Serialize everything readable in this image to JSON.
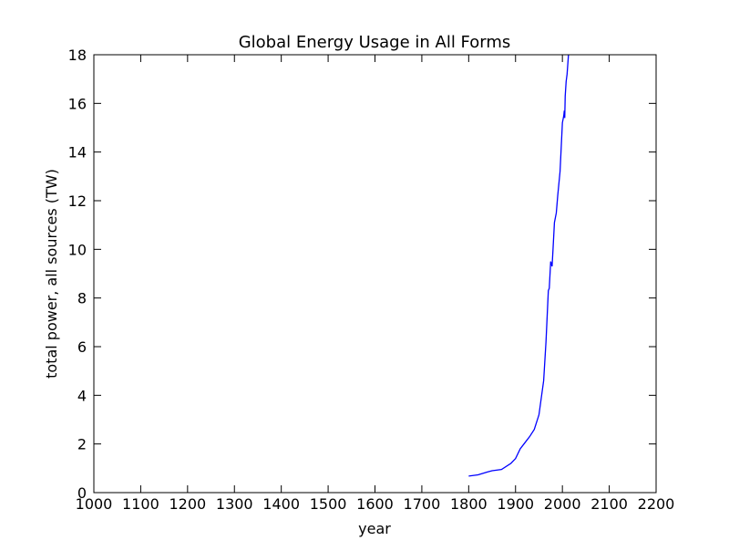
{
  "chart_data": {
    "type": "line",
    "title": "Global Energy Usage in All Forms",
    "x_label": "year",
    "y_label": "total power, all sources (TW)",
    "x": [
      1800,
      1820,
      1840,
      1850,
      1870,
      1890,
      1900,
      1910,
      1920,
      1930,
      1940,
      1950,
      1960,
      1965,
      1970,
      1972,
      1975,
      1978,
      1980,
      1983,
      1987,
      1990,
      1995,
      1997,
      2000,
      2003,
      2004,
      2005,
      2006,
      2008,
      2010,
      2013
    ],
    "series": [
      {
        "name": "total power",
        "color": "#0000ff",
        "values": [
          0.68,
          0.73,
          0.85,
          0.9,
          0.95,
          1.2,
          1.4,
          1.8,
          2.05,
          2.3,
          2.6,
          3.2,
          4.6,
          6.2,
          8.3,
          8.4,
          9.5,
          9.3,
          10,
          11.1,
          11.5,
          12.2,
          13.2,
          14,
          15.2,
          15.5,
          15.7,
          15.4,
          16.3,
          16.9,
          17.2,
          18
        ]
      }
    ],
    "xlim": [
      1000,
      2200
    ],
    "xticks": [
      1000,
      1100,
      1200,
      1300,
      1400,
      1500,
      1600,
      1700,
      1800,
      1900,
      2000,
      2100,
      2200
    ],
    "ylim": [
      0,
      18
    ],
    "yticks": [
      0,
      2,
      4,
      6,
      8,
      10,
      12,
      14,
      16,
      18
    ]
  }
}
